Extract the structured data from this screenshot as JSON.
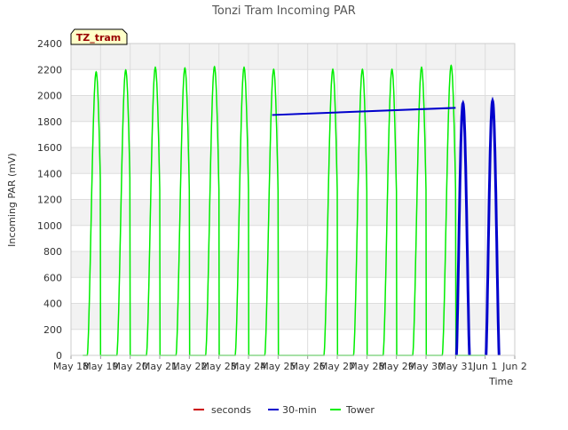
{
  "chart_data": {
    "type": "line",
    "title": "Tonzi Tram Incoming PAR",
    "site_label": "TZ_tram",
    "xlabel": "Time",
    "ylabel": "Incoming PAR (mV)",
    "ylim": [
      0,
      2400
    ],
    "yticks": [
      0,
      200,
      400,
      600,
      800,
      1000,
      1200,
      1400,
      1600,
      1800,
      2000,
      2200,
      2400
    ],
    "xlim": [
      0,
      15
    ],
    "xtick_labels": [
      "May 18",
      "May 19",
      "May 20",
      "May 21",
      "May 22",
      "May 23",
      "May 24",
      "May 25",
      "May 26",
      "May 27",
      "May 28",
      "May 29",
      "May 30",
      "May 31",
      "Jun 1",
      "Jun 2"
    ],
    "grid": true,
    "legend_position": "bottom",
    "series": [
      {
        "name": "seconds",
        "color": "#cc0000",
        "points": []
      },
      {
        "name": "30-min",
        "color": "#0000cc",
        "trend": [
          [
            6.8,
            1850
          ],
          [
            13.0,
            1905
          ]
        ],
        "peaks": [
          [
            13.25,
            1940
          ],
          [
            14.25,
            1960
          ]
        ]
      },
      {
        "name": "Tower",
        "color": "#00ee00",
        "peaks": [
          [
            0.85,
            2180
          ],
          [
            1.85,
            2195
          ],
          [
            2.85,
            2215
          ],
          [
            3.85,
            2210
          ],
          [
            4.85,
            2220
          ],
          [
            5.85,
            2215
          ],
          [
            6.85,
            2200
          ],
          [
            8.85,
            2200
          ],
          [
            9.85,
            2200
          ],
          [
            10.85,
            2200
          ],
          [
            11.85,
            2215
          ],
          [
            12.85,
            2230
          ]
        ]
      }
    ]
  }
}
